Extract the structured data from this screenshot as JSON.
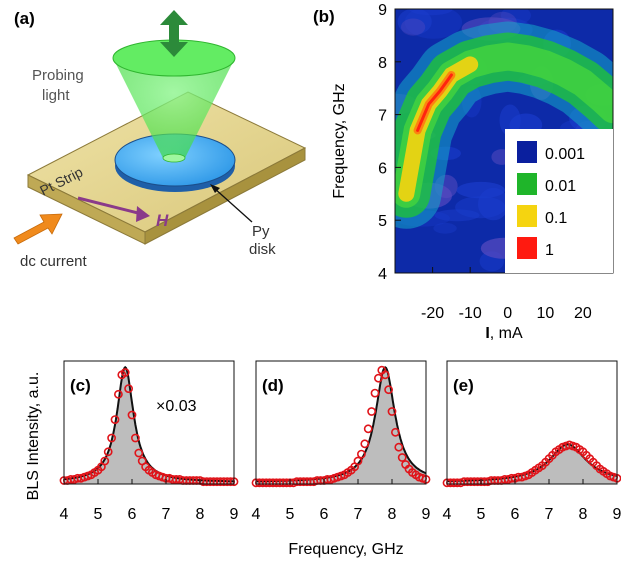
{
  "panels": {
    "a": {
      "label": "(a)",
      "probing_light": [
        "Probing",
        "light"
      ],
      "strip_label": "Pt Strip",
      "field_label": "H",
      "disk_label": [
        "Py",
        "disk"
      ],
      "current_label": "dc current"
    },
    "b": {
      "label": "(b)",
      "legend": [
        "0.001",
        "0.01",
        "0.1",
        "1"
      ],
      "legend_colors": [
        "#0a1f9e",
        "#1fb52a",
        "#f5d410",
        "#ff1a10"
      ]
    },
    "c": {
      "label": "(c)",
      "scale_note": "×0.03"
    },
    "d": {
      "label": "(d)"
    },
    "e": {
      "label": "(e)"
    }
  },
  "chart_data": [
    {
      "type": "heatmap",
      "panel": "b",
      "ylabel": "Frequency, GHz",
      "xlabel_symbol": "I",
      "xlabel_unit": ", mA",
      "xlim": [
        -30,
        28
      ],
      "ylim": [
        4,
        9
      ],
      "xticks": [
        -20,
        -10,
        0,
        10,
        20
      ],
      "xtick_labels": [
        "-20",
        "-10",
        "0",
        "10",
        "20"
      ],
      "yticks": [
        4,
        5,
        6,
        7,
        8,
        9
      ],
      "ytick_labels": [
        "4",
        "5",
        "6",
        "7",
        "8",
        "9"
      ],
      "colorscale": "log",
      "legend_placement": "right",
      "ridge_x": [
        -27,
        -24,
        -21,
        -18,
        -15,
        -10,
        -5,
        0,
        5,
        10,
        15,
        20,
        25,
        28
      ],
      "ridge_y": [
        5.5,
        6.7,
        7.2,
        7.45,
        7.75,
        7.95,
        8.05,
        8.1,
        8.05,
        7.95,
        7.8,
        7.6,
        7.3,
        7.1
      ]
    },
    {
      "type": "scatter",
      "panel": "c",
      "xlim": [
        4,
        9
      ],
      "xticks": [
        4,
        5,
        6,
        7,
        8,
        9
      ],
      "xtick_labels": [
        "4",
        "5",
        "6",
        "7",
        "8",
        "9"
      ],
      "peak_center": 5.8,
      "peak_width": 0.3,
      "peak_height": 1.0,
      "x": [
        4.0,
        4.1,
        4.2,
        4.3,
        4.4,
        4.5,
        4.6,
        4.7,
        4.8,
        4.9,
        5.0,
        5.1,
        5.2,
        5.3,
        5.4,
        5.5,
        5.6,
        5.7,
        5.8,
        5.9,
        6.0,
        6.1,
        6.2,
        6.3,
        6.4,
        6.5,
        6.6,
        6.7,
        6.8,
        6.9,
        7.0,
        7.1,
        7.2,
        7.3,
        7.4,
        7.5,
        7.6,
        7.7,
        7.8,
        7.9,
        8.0,
        8.1,
        8.2,
        8.3,
        8.4,
        8.5,
        8.6,
        8.7,
        8.8,
        8.9,
        9.0
      ],
      "y": [
        0.03,
        0.03,
        0.04,
        0.04,
        0.05,
        0.05,
        0.06,
        0.07,
        0.08,
        0.1,
        0.12,
        0.15,
        0.2,
        0.28,
        0.4,
        0.56,
        0.78,
        0.95,
        0.97,
        0.83,
        0.6,
        0.4,
        0.27,
        0.2,
        0.15,
        0.12,
        0.1,
        0.08,
        0.07,
        0.06,
        0.05,
        0.05,
        0.04,
        0.04,
        0.04,
        0.03,
        0.03,
        0.03,
        0.03,
        0.03,
        0.03,
        0.02,
        0.02,
        0.02,
        0.02,
        0.02,
        0.02,
        0.02,
        0.02,
        0.02,
        0.02
      ]
    },
    {
      "type": "scatter",
      "panel": "d",
      "xlim": [
        4,
        9
      ],
      "xticks": [
        4,
        5,
        6,
        7,
        8,
        9
      ],
      "xtick_labels": [
        "4",
        "5",
        "6",
        "7",
        "8",
        "9"
      ],
      "peak_center": 7.8,
      "peak_width": 0.35,
      "peak_height": 1.0,
      "x": [
        4.0,
        4.1,
        4.2,
        4.3,
        4.4,
        4.5,
        4.6,
        4.7,
        4.8,
        4.9,
        5.0,
        5.1,
        5.2,
        5.3,
        5.4,
        5.5,
        5.6,
        5.7,
        5.8,
        5.9,
        6.0,
        6.1,
        6.2,
        6.3,
        6.4,
        6.5,
        6.6,
        6.7,
        6.8,
        6.9,
        7.0,
        7.1,
        7.2,
        7.3,
        7.4,
        7.5,
        7.6,
        7.7,
        7.8,
        7.9,
        8.0,
        8.1,
        8.2,
        8.3,
        8.4,
        8.5,
        8.6,
        8.7,
        8.8,
        8.9,
        9.0
      ],
      "y": [
        0.01,
        0.01,
        0.01,
        0.01,
        0.01,
        0.01,
        0.01,
        0.01,
        0.01,
        0.01,
        0.01,
        0.01,
        0.02,
        0.02,
        0.02,
        0.02,
        0.02,
        0.02,
        0.03,
        0.03,
        0.03,
        0.04,
        0.04,
        0.05,
        0.06,
        0.07,
        0.08,
        0.1,
        0.12,
        0.15,
        0.2,
        0.26,
        0.35,
        0.48,
        0.63,
        0.79,
        0.92,
        0.99,
        0.95,
        0.82,
        0.63,
        0.45,
        0.32,
        0.23,
        0.17,
        0.13,
        0.1,
        0.08,
        0.06,
        0.05,
        0.04
      ]
    },
    {
      "type": "scatter",
      "panel": "e",
      "xlim": [
        4,
        9
      ],
      "xticks": [
        4,
        5,
        6,
        7,
        8,
        9
      ],
      "xtick_labels": [
        "4",
        "5",
        "6",
        "7",
        "8",
        "9"
      ],
      "peak_center": 7.55,
      "peak_width": 0.65,
      "peak_height": 0.33,
      "x": [
        4.0,
        4.1,
        4.2,
        4.3,
        4.4,
        4.5,
        4.6,
        4.7,
        4.8,
        4.9,
        5.0,
        5.1,
        5.2,
        5.3,
        5.4,
        5.5,
        5.6,
        5.7,
        5.8,
        5.9,
        6.0,
        6.1,
        6.2,
        6.3,
        6.4,
        6.5,
        6.6,
        6.7,
        6.8,
        6.9,
        7.0,
        7.1,
        7.2,
        7.3,
        7.4,
        7.5,
        7.6,
        7.7,
        7.8,
        7.9,
        8.0,
        8.1,
        8.2,
        8.3,
        8.4,
        8.5,
        8.6,
        8.7,
        8.8,
        8.9,
        9.0
      ],
      "y": [
        0.01,
        0.01,
        0.01,
        0.01,
        0.01,
        0.02,
        0.02,
        0.02,
        0.02,
        0.02,
        0.02,
        0.02,
        0.02,
        0.03,
        0.03,
        0.03,
        0.03,
        0.04,
        0.04,
        0.05,
        0.05,
        0.06,
        0.06,
        0.07,
        0.08,
        0.1,
        0.12,
        0.14,
        0.16,
        0.19,
        0.22,
        0.25,
        0.28,
        0.3,
        0.32,
        0.33,
        0.34,
        0.33,
        0.32,
        0.3,
        0.28,
        0.25,
        0.22,
        0.19,
        0.16,
        0.13,
        0.11,
        0.09,
        0.07,
        0.06,
        0.05
      ]
    }
  ],
  "shared_axes": {
    "spectra_ylabel": "BLS Intensity, a.u.",
    "spectra_xlabel": "Frequency, GHz"
  }
}
